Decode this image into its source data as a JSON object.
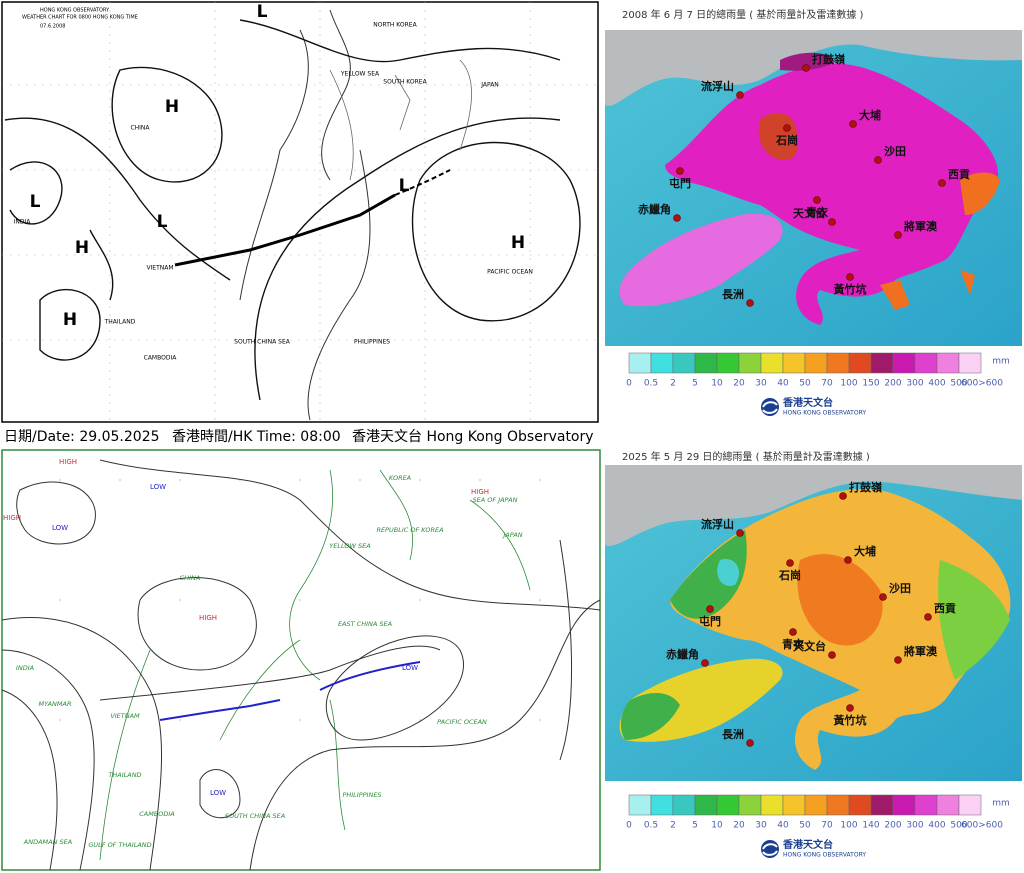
{
  "weather_chart_2008": {
    "header": "HONG KONG OBSERVATORY",
    "subheader": "WEATHER CHART FOR 0800 HONG KONG TIME",
    "date": "07.6.2008",
    "pressure_labels": [
      "L",
      "H",
      "L",
      "H",
      "L",
      "H",
      "H",
      "L"
    ],
    "regions": [
      "CHINA",
      "INDIA",
      "VIETNAM",
      "THAILAND",
      "CAMBODIA",
      "PHILIPPINES",
      "JAPAN",
      "SOUTH KOREA",
      "NORTH KOREA",
      "PACIFIC OCEAN",
      "SOUTH CHINA SEA",
      "YELLOW SEA"
    ]
  },
  "caption": {
    "date": "日期/Date: 29.05.2025",
    "time": "香港時間/HK Time: 08:00",
    "source": "香港天文台 Hong Kong Observatory"
  },
  "weather_chart_2025": {
    "highs": [
      "HIGH",
      "HIGH",
      "HIGH",
      "HIGH"
    ],
    "lows": [
      "LOW",
      "LOW",
      "LOW",
      "LOW"
    ],
    "regions": [
      "KOREA",
      "REPUBLIC OF KOREA",
      "JAPAN",
      "SEA OF JAPAN",
      "CHINA",
      "YELLOW SEA",
      "EAST CHINA SEA",
      "INDIA",
      "MYANMAR",
      "VIETNAM",
      "THAILAND",
      "CAMBODIA",
      "SOUTH CHINA SEA",
      "PHILIPPINES",
      "PACIFIC OCEAN",
      "ANDAMAN SEA",
      "GULF OF THAILAND"
    ]
  },
  "rainfall_maps": [
    {
      "title": "2008 年  6  月 7  日的總雨量 ( 基於雨量計及雷達數據 )",
      "places": [
        "打鼓嶺",
        "流浮山",
        "大埔",
        "石崗",
        "沙田",
        "屯門",
        "西貢",
        "赤鱲角",
        "青衣",
        "天文台",
        "將軍澳",
        "黃竹坑",
        "長洲"
      ],
      "legend": [
        "0",
        "0.5",
        "2",
        "5",
        "10",
        "20",
        "30",
        "40",
        "50",
        "70",
        "100",
        "150",
        "200",
        "300",
        "400",
        "500",
        "600>600"
      ],
      "unit": "mm",
      "logo": {
        "zh": "香港天文台",
        "en": "HONG KONG OBSERVATORY"
      }
    },
    {
      "title": "2025 年  5  月 29  日的總雨量 ( 基於雨量計及雷達數據 )",
      "places": [
        "打鼓嶺",
        "流浮山",
        "大埔",
        "石崗",
        "沙田",
        "屯門",
        "西貢",
        "赤鱲角",
        "青衣",
        "天文台",
        "將軍澳",
        "黃竹坑",
        "長洲"
      ],
      "legend": [
        "0",
        "0.5",
        "2",
        "5",
        "10",
        "20",
        "30",
        "40",
        "50",
        "70",
        "100",
        "140",
        "200",
        "300",
        "400",
        "500",
        "600>600"
      ],
      "unit": "mm",
      "logo": {
        "zh": "香港天文台",
        "en": "HONG KONG OBSERVATORY"
      }
    }
  ]
}
